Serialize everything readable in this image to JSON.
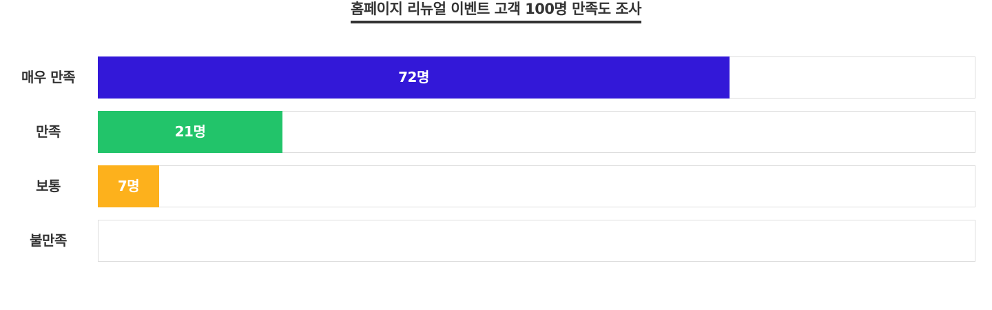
{
  "chart_data": {
    "type": "bar",
    "orientation": "horizontal",
    "title": "홈페이지 리뉴얼 이벤트 고객 100명 만족도 조사",
    "categories": [
      "매우 만족",
      "만족",
      "보통",
      "불만족"
    ],
    "values": [
      72,
      21,
      7,
      0
    ],
    "value_labels": [
      "72명",
      "21명",
      "7명",
      ""
    ],
    "colors": [
      "#3318d8",
      "#22c46a",
      "#fdb11c",
      "#cccccc"
    ],
    "xlim": [
      0,
      100
    ],
    "grid": false,
    "legend": "none"
  }
}
